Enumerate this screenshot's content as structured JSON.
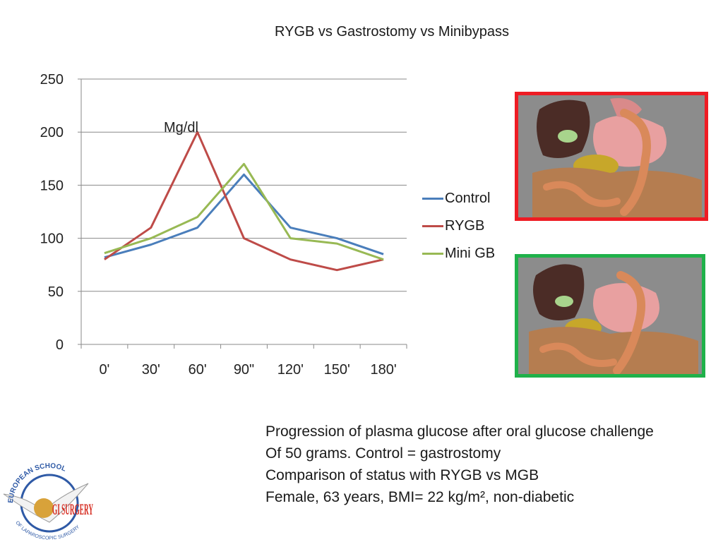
{
  "page": {
    "title": "RYGB vs Gastrostomy vs Minibypass"
  },
  "chart_data": {
    "type": "line",
    "categories": [
      "0'",
      "30'",
      "60'",
      "90\"",
      "120'",
      "150'",
      "180'"
    ],
    "series": [
      {
        "name": "Control",
        "color": "#4a7ebb",
        "values": [
          82,
          94,
          110,
          160,
          110,
          100,
          85
        ]
      },
      {
        "name": "RYGB",
        "color": "#be4b48",
        "values": [
          80,
          110,
          200,
          100,
          80,
          70,
          80
        ]
      },
      {
        "name": "Mini GB",
        "color": "#98b954",
        "values": [
          86,
          100,
          120,
          170,
          100,
          95,
          80
        ]
      }
    ],
    "annotation": "Mg/dl",
    "ylim": [
      0,
      250
    ],
    "yticks": [
      0,
      50,
      100,
      150,
      200,
      250
    ],
    "grid": true,
    "legend_position": "right"
  },
  "images": {
    "top": {
      "icon": "anatomy-rygb-illustration",
      "border_color": "#ee1c24"
    },
    "bottom": {
      "icon": "anatomy-mgb-illustration",
      "border_color": "#1fb14a"
    }
  },
  "caption": {
    "lines": [
      "Progression of plasma glucose after oral glucose challenge",
      "Of 50 grams. Control = gastrostomy",
      "Comparison of status with RYGB vs MGB",
      "Female, 63 years, BMI= 22 kg/m², non-diabetic"
    ]
  },
  "logo": {
    "icon": "european-school-laparoscopic-surgery-logo",
    "text_top": "EUROPEAN SCHOOL",
    "text_sub": "OF LAPAROSCOPIC SURGERY",
    "text_mark": "GI SURGERY"
  }
}
